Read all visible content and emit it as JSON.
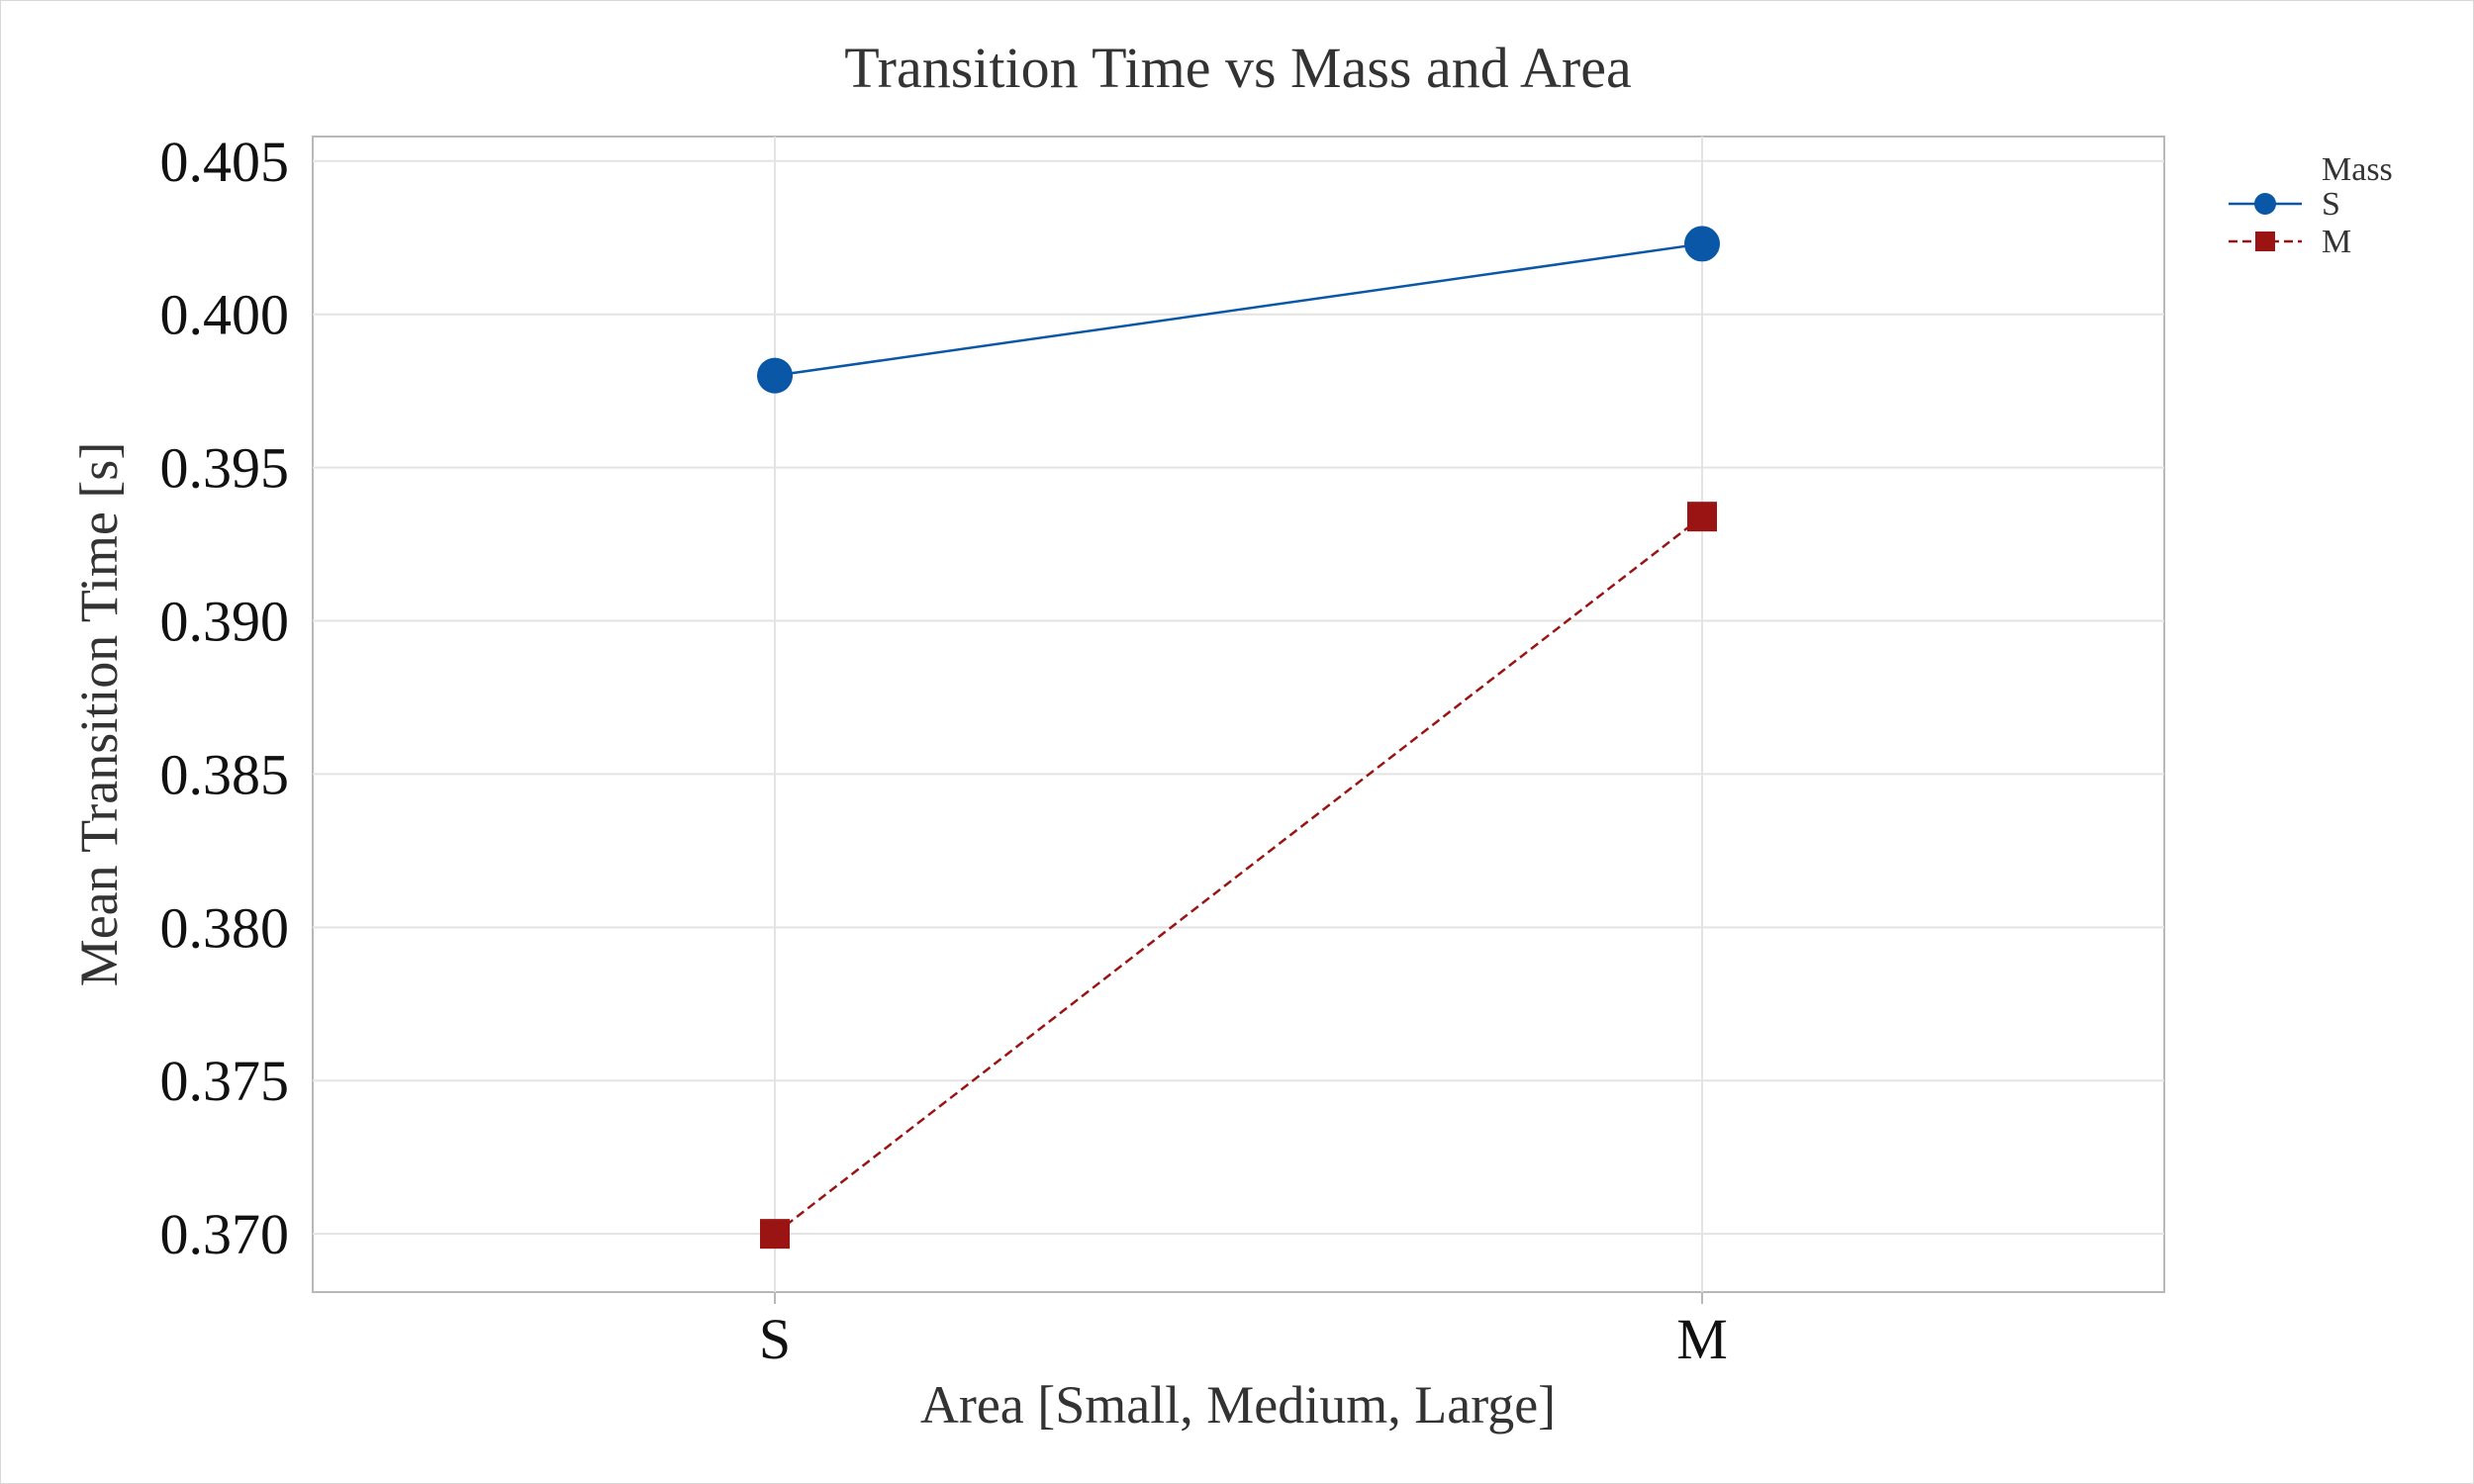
{
  "chart_data": {
    "type": "line",
    "title": "Transition Time vs Mass and Area",
    "xlabel": "Area [Small, Medium, Large]",
    "ylabel": "Mean Transition Time [s]",
    "categories": [
      "S",
      "M"
    ],
    "ylim": [
      0.3681,
      0.4058
    ],
    "yticks": [
      0.37,
      0.375,
      0.38,
      0.385,
      0.39,
      0.395,
      0.4,
      0.405
    ],
    "ytick_labels": [
      "0.370",
      "0.375",
      "0.380",
      "0.385",
      "0.390",
      "0.395",
      "0.400",
      "0.405"
    ],
    "grid": true,
    "legend": {
      "title": "Mass",
      "placement": "top-right outside"
    },
    "series": [
      {
        "name": "S",
        "values": [
          0.398,
          0.4023
        ],
        "color": "#0a57a8",
        "marker": "circle",
        "line_style": "solid"
      },
      {
        "name": "M",
        "values": [
          0.37,
          0.3934
        ],
        "color": "#9b1414",
        "marker": "square",
        "line_style": "dashed"
      }
    ]
  }
}
